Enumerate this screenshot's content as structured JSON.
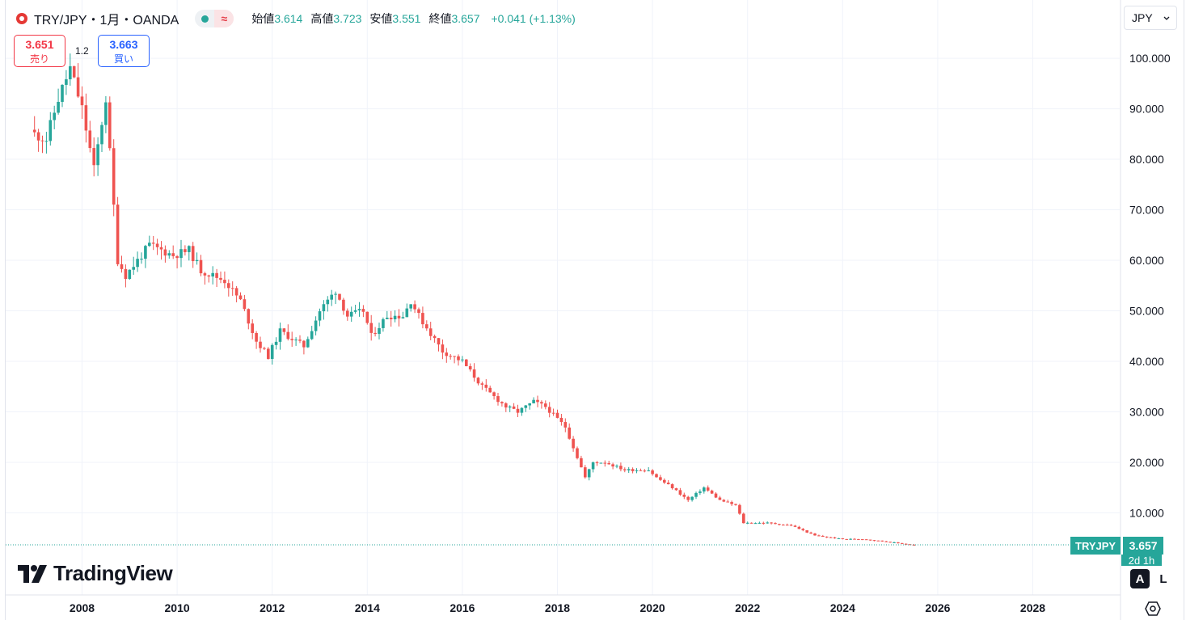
{
  "header": {
    "symbol": "TRY/JPY・1月・OANDA",
    "ohlc": {
      "open_label": "始値",
      "open": "3.614",
      "high_label": "高値",
      "high": "3.723",
      "low_label": "安値",
      "low": "3.551",
      "close_label": "終値",
      "close": "3.657",
      "change": "+0.041 (+1.13%)"
    },
    "currency": "JPY",
    "currency_icon": "chevron-down-icon",
    "live_indicator_icon": "dot-icon",
    "wave_icon": "≈"
  },
  "trade": {
    "sell_price": "3.651",
    "sell_label": "売り",
    "spread": "1.2",
    "buy_price": "3.663",
    "buy_label": "買い"
  },
  "last_price": {
    "symbol": "TRYJPY",
    "value": "3.657",
    "countdown": "2d 1h"
  },
  "branding": {
    "name": "TradingView"
  },
  "controls": {
    "auto_label": "A",
    "log_label": "L",
    "settings_icon": "settings-hexagon-icon"
  },
  "colors": {
    "up": "#26a69a",
    "down": "#ef5350",
    "grid": "#f0f3fa",
    "text": "#131722"
  },
  "chart_data": {
    "type": "candlestick",
    "interval": "1 month",
    "x_ticks": [
      "2008",
      "2010",
      "2012",
      "2014",
      "2016",
      "2018",
      "2020",
      "2022",
      "2024",
      "2026",
      "2028"
    ],
    "y_ticks": [
      "10.000",
      "20.000",
      "30.000",
      "40.000",
      "50.000",
      "60.000",
      "70.000",
      "80.000",
      "90.000",
      "100.000"
    ],
    "ylim": [
      0,
      105
    ],
    "grid": true,
    "anchors": [
      [
        "2007-01",
        85
      ],
      [
        "2007-04",
        84
      ],
      [
        "2007-07",
        92
      ],
      [
        "2007-10",
        98
      ],
      [
        "2008-01",
        90
      ],
      [
        "2008-04",
        78
      ],
      [
        "2008-07",
        92
      ],
      [
        "2008-10",
        60
      ],
      [
        "2008-12",
        57
      ],
      [
        "2009-03",
        60
      ],
      [
        "2009-06",
        63
      ],
      [
        "2009-12",
        61
      ],
      [
        "2010-04",
        62
      ],
      [
        "2010-07",
        58
      ],
      [
        "2011-01",
        56
      ],
      [
        "2011-05",
        52
      ],
      [
        "2011-09",
        44
      ],
      [
        "2011-12",
        41
      ],
      [
        "2012-03",
        46
      ],
      [
        "2012-09",
        43
      ],
      [
        "2013-01",
        50
      ],
      [
        "2013-05",
        54
      ],
      [
        "2013-08",
        49
      ],
      [
        "2013-12",
        50
      ],
      [
        "2014-02",
        45
      ],
      [
        "2014-06",
        49
      ],
      [
        "2014-10",
        49
      ],
      [
        "2014-12",
        52
      ],
      [
        "2015-02",
        49
      ],
      [
        "2015-08",
        42
      ],
      [
        "2016-01",
        40
      ],
      [
        "2016-06",
        35
      ],
      [
        "2016-12",
        31
      ],
      [
        "2017-03",
        30
      ],
      [
        "2017-07",
        32
      ],
      [
        "2017-10",
        31
      ],
      [
        "2018-03",
        27
      ],
      [
        "2018-08",
        17
      ],
      [
        "2018-10",
        20
      ],
      [
        "2019-01",
        20
      ],
      [
        "2019-06",
        18.5
      ],
      [
        "2019-12",
        18.5
      ],
      [
        "2020-02",
        17
      ],
      [
        "2020-06",
        15
      ],
      [
        "2020-10",
        12.5
      ],
      [
        "2021-02",
        15
      ],
      [
        "2021-06",
        12.5
      ],
      [
        "2021-10",
        11.5
      ],
      [
        "2021-12",
        8
      ],
      [
        "2022-06",
        8
      ],
      [
        "2022-12",
        7.5
      ],
      [
        "2023-06",
        5.5
      ],
      [
        "2024-01",
        4.8
      ],
      [
        "2024-06",
        4.8
      ],
      [
        "2024-12",
        4.3
      ],
      [
        "2025-06",
        3.7
      ],
      [
        "2025-07",
        3.657
      ]
    ]
  }
}
